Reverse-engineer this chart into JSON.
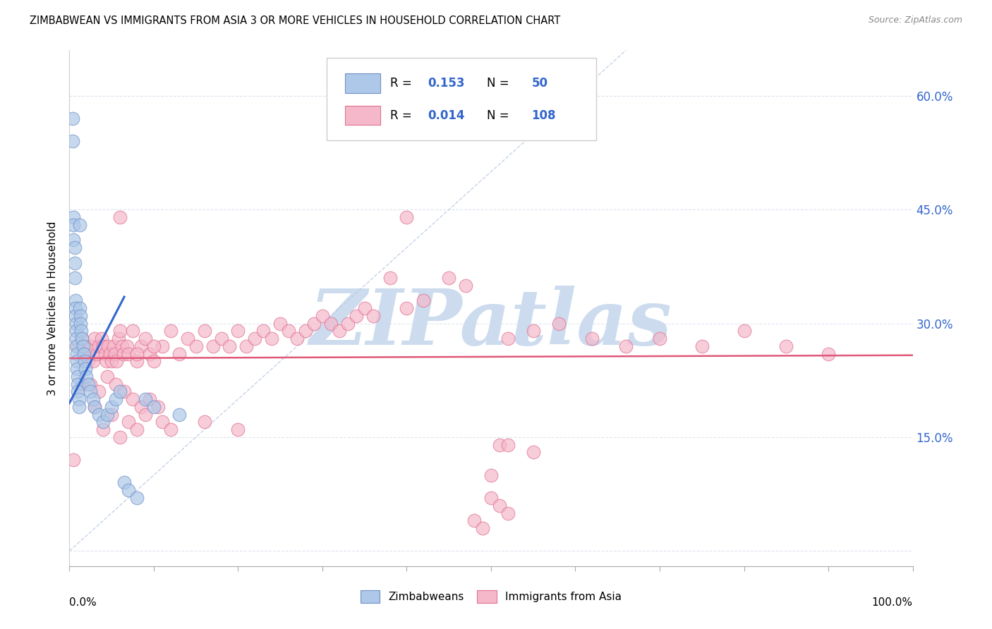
{
  "title": "ZIMBABWEAN VS IMMIGRANTS FROM ASIA 3 OR MORE VEHICLES IN HOUSEHOLD CORRELATION CHART",
  "source": "Source: ZipAtlas.com",
  "ylabel": "3 or more Vehicles in Household",
  "yticks": [
    0.0,
    0.15,
    0.3,
    0.45,
    0.6
  ],
  "ytick_labels": [
    "",
    "15.0%",
    "30.0%",
    "45.0%",
    "60.0%"
  ],
  "xlim": [
    0.0,
    1.0
  ],
  "ylim": [
    -0.02,
    0.66
  ],
  "r1": "0.153",
  "n1": "50",
  "r2": "0.014",
  "n2": "108",
  "color_zimbabwe_fill": "#adc8e8",
  "color_zimbabwe_edge": "#7090c8",
  "color_asia_fill": "#f5b8cb",
  "color_asia_edge": "#e07090",
  "color_blue_line": "#3366cc",
  "color_pink_line": "#e05878",
  "color_diag_line": "#b8c8e0",
  "color_grid": "#dde4ee",
  "color_r_label": "black",
  "color_r_value": "#3366cc",
  "watermark_color": "#ccdcee",
  "zimbabwe_x": [
    0.004,
    0.004,
    0.005,
    0.005,
    0.005,
    0.006,
    0.006,
    0.006,
    0.007,
    0.007,
    0.007,
    0.008,
    0.008,
    0.008,
    0.008,
    0.009,
    0.009,
    0.009,
    0.01,
    0.01,
    0.01,
    0.011,
    0.011,
    0.012,
    0.012,
    0.013,
    0.013,
    0.014,
    0.015,
    0.016,
    0.017,
    0.018,
    0.019,
    0.02,
    0.022,
    0.025,
    0.028,
    0.03,
    0.035,
    0.04,
    0.045,
    0.05,
    0.055,
    0.06,
    0.065,
    0.07,
    0.08,
    0.09,
    0.1,
    0.13
  ],
  "zimbabwe_y": [
    0.54,
    0.57,
    0.44,
    0.43,
    0.41,
    0.4,
    0.38,
    0.36,
    0.33,
    0.32,
    0.31,
    0.3,
    0.29,
    0.28,
    0.27,
    0.26,
    0.25,
    0.24,
    0.23,
    0.22,
    0.21,
    0.2,
    0.19,
    0.43,
    0.32,
    0.31,
    0.3,
    0.29,
    0.28,
    0.27,
    0.26,
    0.25,
    0.24,
    0.23,
    0.22,
    0.21,
    0.2,
    0.19,
    0.18,
    0.17,
    0.18,
    0.19,
    0.2,
    0.21,
    0.09,
    0.08,
    0.07,
    0.2,
    0.19,
    0.18
  ],
  "asia_x": [
    0.005,
    0.01,
    0.015,
    0.018,
    0.02,
    0.022,
    0.025,
    0.028,
    0.03,
    0.032,
    0.035,
    0.038,
    0.04,
    0.042,
    0.044,
    0.046,
    0.048,
    0.05,
    0.052,
    0.054,
    0.056,
    0.058,
    0.06,
    0.062,
    0.064,
    0.068,
    0.07,
    0.075,
    0.08,
    0.085,
    0.09,
    0.095,
    0.1,
    0.11,
    0.12,
    0.13,
    0.14,
    0.15,
    0.16,
    0.17,
    0.18,
    0.19,
    0.2,
    0.21,
    0.22,
    0.23,
    0.24,
    0.25,
    0.26,
    0.27,
    0.28,
    0.29,
    0.3,
    0.31,
    0.32,
    0.33,
    0.34,
    0.35,
    0.36,
    0.38,
    0.4,
    0.42,
    0.45,
    0.47,
    0.5,
    0.52,
    0.55,
    0.58,
    0.62,
    0.66,
    0.7,
    0.75,
    0.8,
    0.85,
    0.9,
    0.015,
    0.025,
    0.035,
    0.045,
    0.055,
    0.065,
    0.075,
    0.085,
    0.095,
    0.105,
    0.03,
    0.05,
    0.07,
    0.09,
    0.11,
    0.04,
    0.06,
    0.08,
    0.12,
    0.16,
    0.2,
    0.06,
    0.08,
    0.1,
    0.4,
    0.5,
    0.51,
    0.52,
    0.48,
    0.49,
    0.55,
    0.51,
    0.52
  ],
  "asia_y": [
    0.12,
    0.27,
    0.28,
    0.27,
    0.26,
    0.25,
    0.27,
    0.25,
    0.28,
    0.26,
    0.27,
    0.28,
    0.27,
    0.26,
    0.25,
    0.27,
    0.26,
    0.25,
    0.27,
    0.26,
    0.25,
    0.28,
    0.29,
    0.27,
    0.26,
    0.27,
    0.26,
    0.29,
    0.25,
    0.27,
    0.28,
    0.26,
    0.25,
    0.27,
    0.29,
    0.26,
    0.28,
    0.27,
    0.29,
    0.27,
    0.28,
    0.27,
    0.29,
    0.27,
    0.28,
    0.29,
    0.28,
    0.3,
    0.29,
    0.28,
    0.29,
    0.3,
    0.31,
    0.3,
    0.29,
    0.3,
    0.31,
    0.32,
    0.31,
    0.36,
    0.32,
    0.33,
    0.36,
    0.35,
    0.1,
    0.28,
    0.29,
    0.3,
    0.28,
    0.27,
    0.28,
    0.27,
    0.29,
    0.27,
    0.26,
    0.22,
    0.22,
    0.21,
    0.23,
    0.22,
    0.21,
    0.2,
    0.19,
    0.2,
    0.19,
    0.19,
    0.18,
    0.17,
    0.18,
    0.17,
    0.16,
    0.15,
    0.16,
    0.16,
    0.17,
    0.16,
    0.44,
    0.26,
    0.27,
    0.44,
    0.07,
    0.06,
    0.05,
    0.04,
    0.03,
    0.13,
    0.14,
    0.14
  ],
  "blue_line_x0": 0.0,
  "blue_line_y0": 0.195,
  "blue_line_x1": 0.065,
  "blue_line_y1": 0.335,
  "pink_line_x0": 0.0,
  "pink_line_y0": 0.254,
  "pink_line_x1": 1.0,
  "pink_line_y1": 0.258
}
